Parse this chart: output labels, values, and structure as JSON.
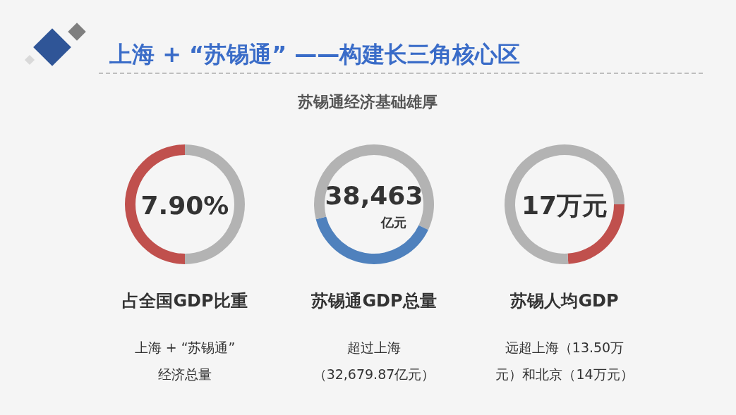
{
  "chart_data": [
    {
      "type": "other",
      "title": "上海 + “苏锡通” ——构建长三角核心区",
      "subtitle": "苏锡通经济基础雄厚"
    },
    {
      "type": "donut",
      "title": "占全国GDP比重",
      "categories": [
        null,
        null
      ],
      "values": [
        50,
        50
      ],
      "colors": [
        "#b3b3b3",
        "#c0504d"
      ],
      "annotations": [
        "7.90%",
        "上海 +  “苏锡通”",
        "经济总量"
      ]
    },
    {
      "type": "donut",
      "title": "苏锡通GDP总量",
      "categories": [
        null,
        null,
        null
      ],
      "values": [
        32,
        39,
        29
      ],
      "colors": [
        "#b3b3b3",
        "#4f81bd",
        "#b3b3b3"
      ],
      "annotations": [
        "38,463",
        "亿元",
        "超过上海",
        "（32,679.87亿元）"
      ]
    },
    {
      "type": "donut",
      "title": "苏锡人均GDP",
      "categories": [
        null,
        null,
        null
      ],
      "values": [
        25,
        24,
        51
      ],
      "colors": [
        "#b3b3b3",
        "#c0504d",
        "#b3b3b3"
      ],
      "annotations": [
        "17万元",
        "远超上海（13.50万",
        "元）和北京（14万元）"
      ]
    }
  ]
}
